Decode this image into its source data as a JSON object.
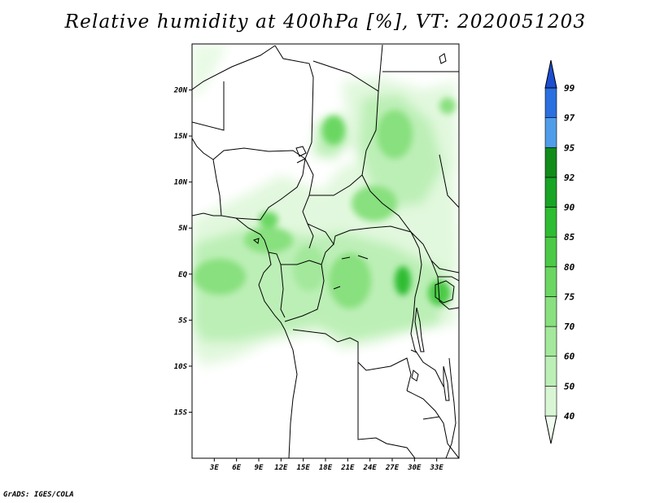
{
  "title": "Relative humidity at 400hPa [%], VT: 2020051203",
  "credit": "GrADS: IGES/COLA",
  "map": {
    "lon_range": [
      0,
      36
    ],
    "lat_range": [
      -20,
      25
    ],
    "lat_labels": [
      "20N",
      "15N",
      "10N",
      "5N",
      "EQ",
      "5S",
      "10S",
      "15S"
    ],
    "lat_values": [
      20,
      15,
      10,
      5,
      0,
      -5,
      -10,
      -15
    ],
    "lon_labels": [
      "3E",
      "6E",
      "9E",
      "12E",
      "15E",
      "18E",
      "21E",
      "24E",
      "27E",
      "30E",
      "33E"
    ],
    "lon_values": [
      3,
      6,
      9,
      12,
      15,
      18,
      21,
      24,
      27,
      30,
      33
    ]
  },
  "colorbar": {
    "levels": [
      "40",
      "50",
      "60",
      "70",
      "75",
      "80",
      "85",
      "90",
      "92",
      "95",
      "97",
      "99"
    ],
    "colors": [
      "#f0fcef",
      "#d8f6d4",
      "#bcefb6",
      "#a3e89b",
      "#88e07e",
      "#6bd762",
      "#4cca47",
      "#2ebc32",
      "#18a425",
      "#118b1a",
      "#4f9de9",
      "#2a6fe0",
      "#1c4ed1"
    ]
  }
}
